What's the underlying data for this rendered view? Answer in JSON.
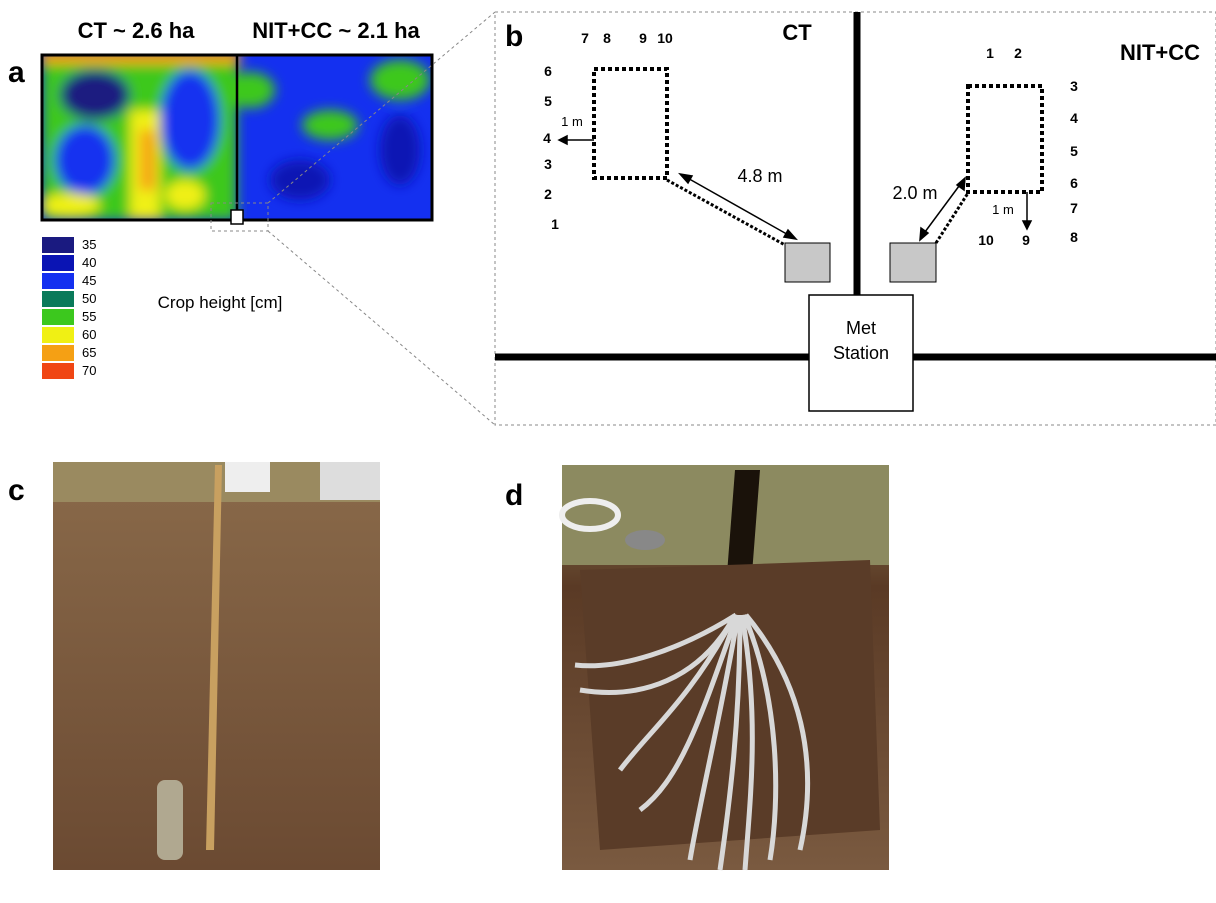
{
  "panel_a": {
    "label": "a",
    "field_labels": [
      "CT ~ 2.6 ha",
      "NIT+CC ~ 2.1 ha"
    ],
    "legend": {
      "values": [
        35,
        40,
        45,
        50,
        55,
        60,
        65,
        70
      ],
      "colors": [
        "#1a1a80",
        "#0a14b4",
        "#1430f0",
        "#0a7a5a",
        "#3cc81e",
        "#f0f014",
        "#f5a014",
        "#f04614"
      ]
    },
    "axis_label": "Crop height [cm]"
  },
  "panel_b": {
    "label": "b",
    "ct_label": "CT",
    "nit_label": "NIT+CC",
    "ct_sensors": [
      "1",
      "2",
      "3",
      "4",
      "5",
      "6",
      "7",
      "8",
      "9",
      "10"
    ],
    "nit_sensors": [
      "1",
      "2",
      "3",
      "4",
      "5",
      "6",
      "7",
      "8",
      "9",
      "10"
    ],
    "ct_distance": "4.8 m",
    "nit_distance": "2.0 m",
    "ct_offset": "1 m",
    "nit_offset": "1 m",
    "station": [
      "Met",
      "Station"
    ]
  },
  "panel_c": {
    "label": "c"
  },
  "panel_d": {
    "label": "d"
  }
}
